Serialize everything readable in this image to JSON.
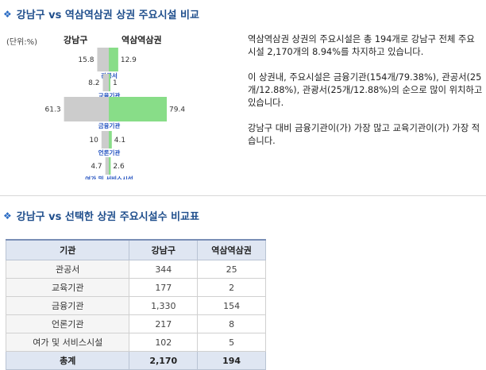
{
  "section1": {
    "title": "강남구 vs 역삼역삼권 상권 주요시설 비교"
  },
  "chart": {
    "unit_label": "(단위:%)",
    "left_header": "강남구",
    "right_header": "역삼역삼권",
    "colors": {
      "left": "#cccccc",
      "right": "#88dd88",
      "label": "#1f4fbf"
    }
  },
  "chart_data": {
    "type": "bar",
    "orientation": "horizontal-butterfly",
    "categories": [
      "관공서",
      "교육기관",
      "금융기관",
      "언론기관",
      "여가 및 서비스시설"
    ],
    "series": [
      {
        "name": "강남구",
        "values": [
          15.8,
          8.2,
          61.3,
          10,
          4.7
        ]
      },
      {
        "name": "역삼역삼권",
        "values": [
          12.9,
          1,
          79.4,
          4.1,
          2.6
        ]
      }
    ],
    "labels_left": [
      "15.8",
      "8.2",
      "61.3",
      "10",
      "4.7"
    ],
    "labels_right": [
      "12.9",
      "1",
      "79.4",
      "4.1",
      "2.6"
    ]
  },
  "description": [
    "역삼역삼권 상권의 주요시설은 총 194개로 강남구 전체 주요시설 2,170개의 8.94%를 차지하고 있습니다.",
    "이 상권내, 주요시설은 금융기관(154개/79.38%), 관공서(25개/12.88%), 관광서(25개/12.88%)의 순으로 많이 위치하고 있습니다.",
    "강남구 대비 금융기관이(가) 가장 많고 교육기관이(가) 가장 적습니다."
  ],
  "section2": {
    "title": "강남구 vs 선택한 상권 주요시설수 비교표"
  },
  "table": {
    "headers": [
      "기관",
      "강남구",
      "역삼역삼권"
    ],
    "rows": [
      [
        "관공서",
        "344",
        "25"
      ],
      [
        "교육기관",
        "177",
        "2"
      ],
      [
        "금융기관",
        "1,330",
        "154"
      ],
      [
        "언론기관",
        "217",
        "8"
      ],
      [
        "여가 및 서비스시설",
        "102",
        "5"
      ]
    ],
    "total": [
      "총계",
      "2,170",
      "194"
    ]
  }
}
